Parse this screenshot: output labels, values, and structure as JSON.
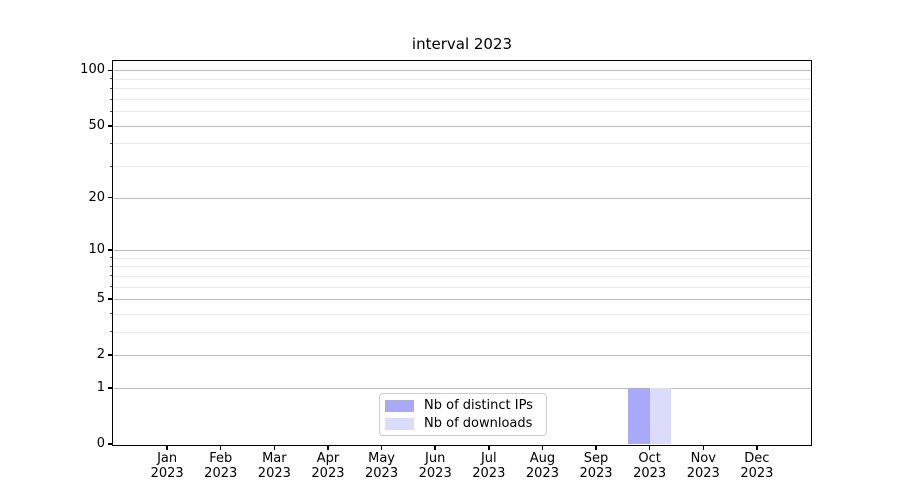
{
  "figure": {
    "title": "interval 2023"
  },
  "chart_data": {
    "type": "bar",
    "title": "interval 2023",
    "categories": [
      "Jan 2023",
      "Feb 2023",
      "Mar 2023",
      "Apr 2023",
      "May 2023",
      "Jun 2023",
      "Jul 2023",
      "Aug 2023",
      "Sep 2023",
      "Oct 2023",
      "Nov 2023",
      "Dec 2023"
    ],
    "series": [
      {
        "name": "Nb of distinct IPs",
        "color": "#a9a9f9",
        "values": [
          0,
          0,
          0,
          0,
          0,
          0,
          0,
          0,
          0,
          1,
          0,
          0
        ]
      },
      {
        "name": "Nb of downloads",
        "color": "#dbdbfb",
        "values": [
          0,
          0,
          0,
          0,
          0,
          0,
          0,
          0,
          0,
          1,
          0,
          0
        ]
      }
    ],
    "xlabel": "",
    "ylabel": "",
    "yscale": "log1p",
    "ylim": [
      0,
      112
    ],
    "yticks_major": [
      0,
      1,
      2,
      5,
      10,
      20,
      50,
      100
    ],
    "yticks_minor": [
      3,
      4,
      6,
      7,
      8,
      9,
      30,
      40,
      60,
      70,
      80,
      90
    ],
    "grid": true,
    "legend_position": "lower center"
  },
  "colors": {
    "bar_distinct_ips": "#a9a9f9",
    "bar_downloads": "#dbdbfb",
    "grid_major": "#bcbcbc",
    "grid_minor": "#e9e9e9",
    "spine": "#000000",
    "legend_border": "#cccccc",
    "background": "#ffffff"
  }
}
